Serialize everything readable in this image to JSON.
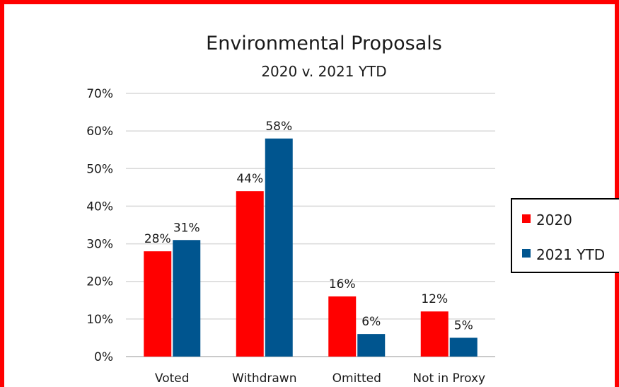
{
  "chart_data": {
    "type": "bar",
    "title": "Environmental Proposals",
    "subtitle": "2020 v. 2021 YTD",
    "categories": [
      "Voted",
      "Withdrawn",
      "Omitted",
      "Not in Proxy"
    ],
    "series": [
      {
        "name": "2020",
        "values": [
          28,
          44,
          16,
          12
        ],
        "labels": [
          "28%",
          "44%",
          "16%",
          "12%"
        ],
        "color": "#ff0000"
      },
      {
        "name": "2021 YTD",
        "values": [
          31,
          58,
          6,
          5
        ],
        "labels": [
          "31%",
          "58%",
          "6%",
          "5%"
        ],
        "color": "#00558f"
      }
    ],
    "ylim": [
      0,
      70
    ],
    "yticks": [
      0,
      10,
      20,
      30,
      40,
      50,
      60,
      70
    ],
    "ytick_labels": [
      "0%",
      "10%",
      "20%",
      "30%",
      "40%",
      "50%",
      "60%",
      "70%"
    ],
    "grid": true,
    "legend": "right",
    "frame_color": "#ff0000",
    "grid_color": "#d9d9d9"
  }
}
